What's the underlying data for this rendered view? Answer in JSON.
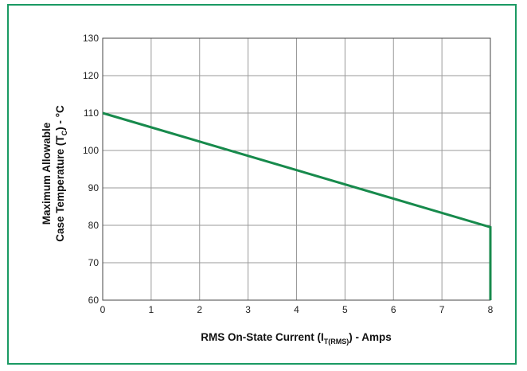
{
  "colors": {
    "frame": "#1a9a63",
    "line": "#178a4c",
    "grid": "#9a9a9a",
    "axis": "#444444"
  },
  "chart_data": {
    "type": "line",
    "title": "",
    "xlabel": {
      "main": "RMS On-State Current (I",
      "sub": "T(RMS)",
      "tail": ") - Amps"
    },
    "ylabel": {
      "line1": "Maximum Allowable",
      "line2_main": "Case Temperature (T",
      "line2_sub": "C",
      "line2_tail": ") - °C"
    },
    "xlim": [
      0,
      8
    ],
    "ylim": [
      60,
      130
    ],
    "xticks": [
      0,
      1,
      2,
      3,
      4,
      5,
      6,
      7,
      8
    ],
    "yticks": [
      60,
      70,
      80,
      90,
      100,
      110,
      120,
      130
    ],
    "grid": true,
    "series": [
      {
        "x": [
          0,
          8,
          8
        ],
        "y": [
          110,
          79.5,
          60
        ]
      }
    ]
  }
}
